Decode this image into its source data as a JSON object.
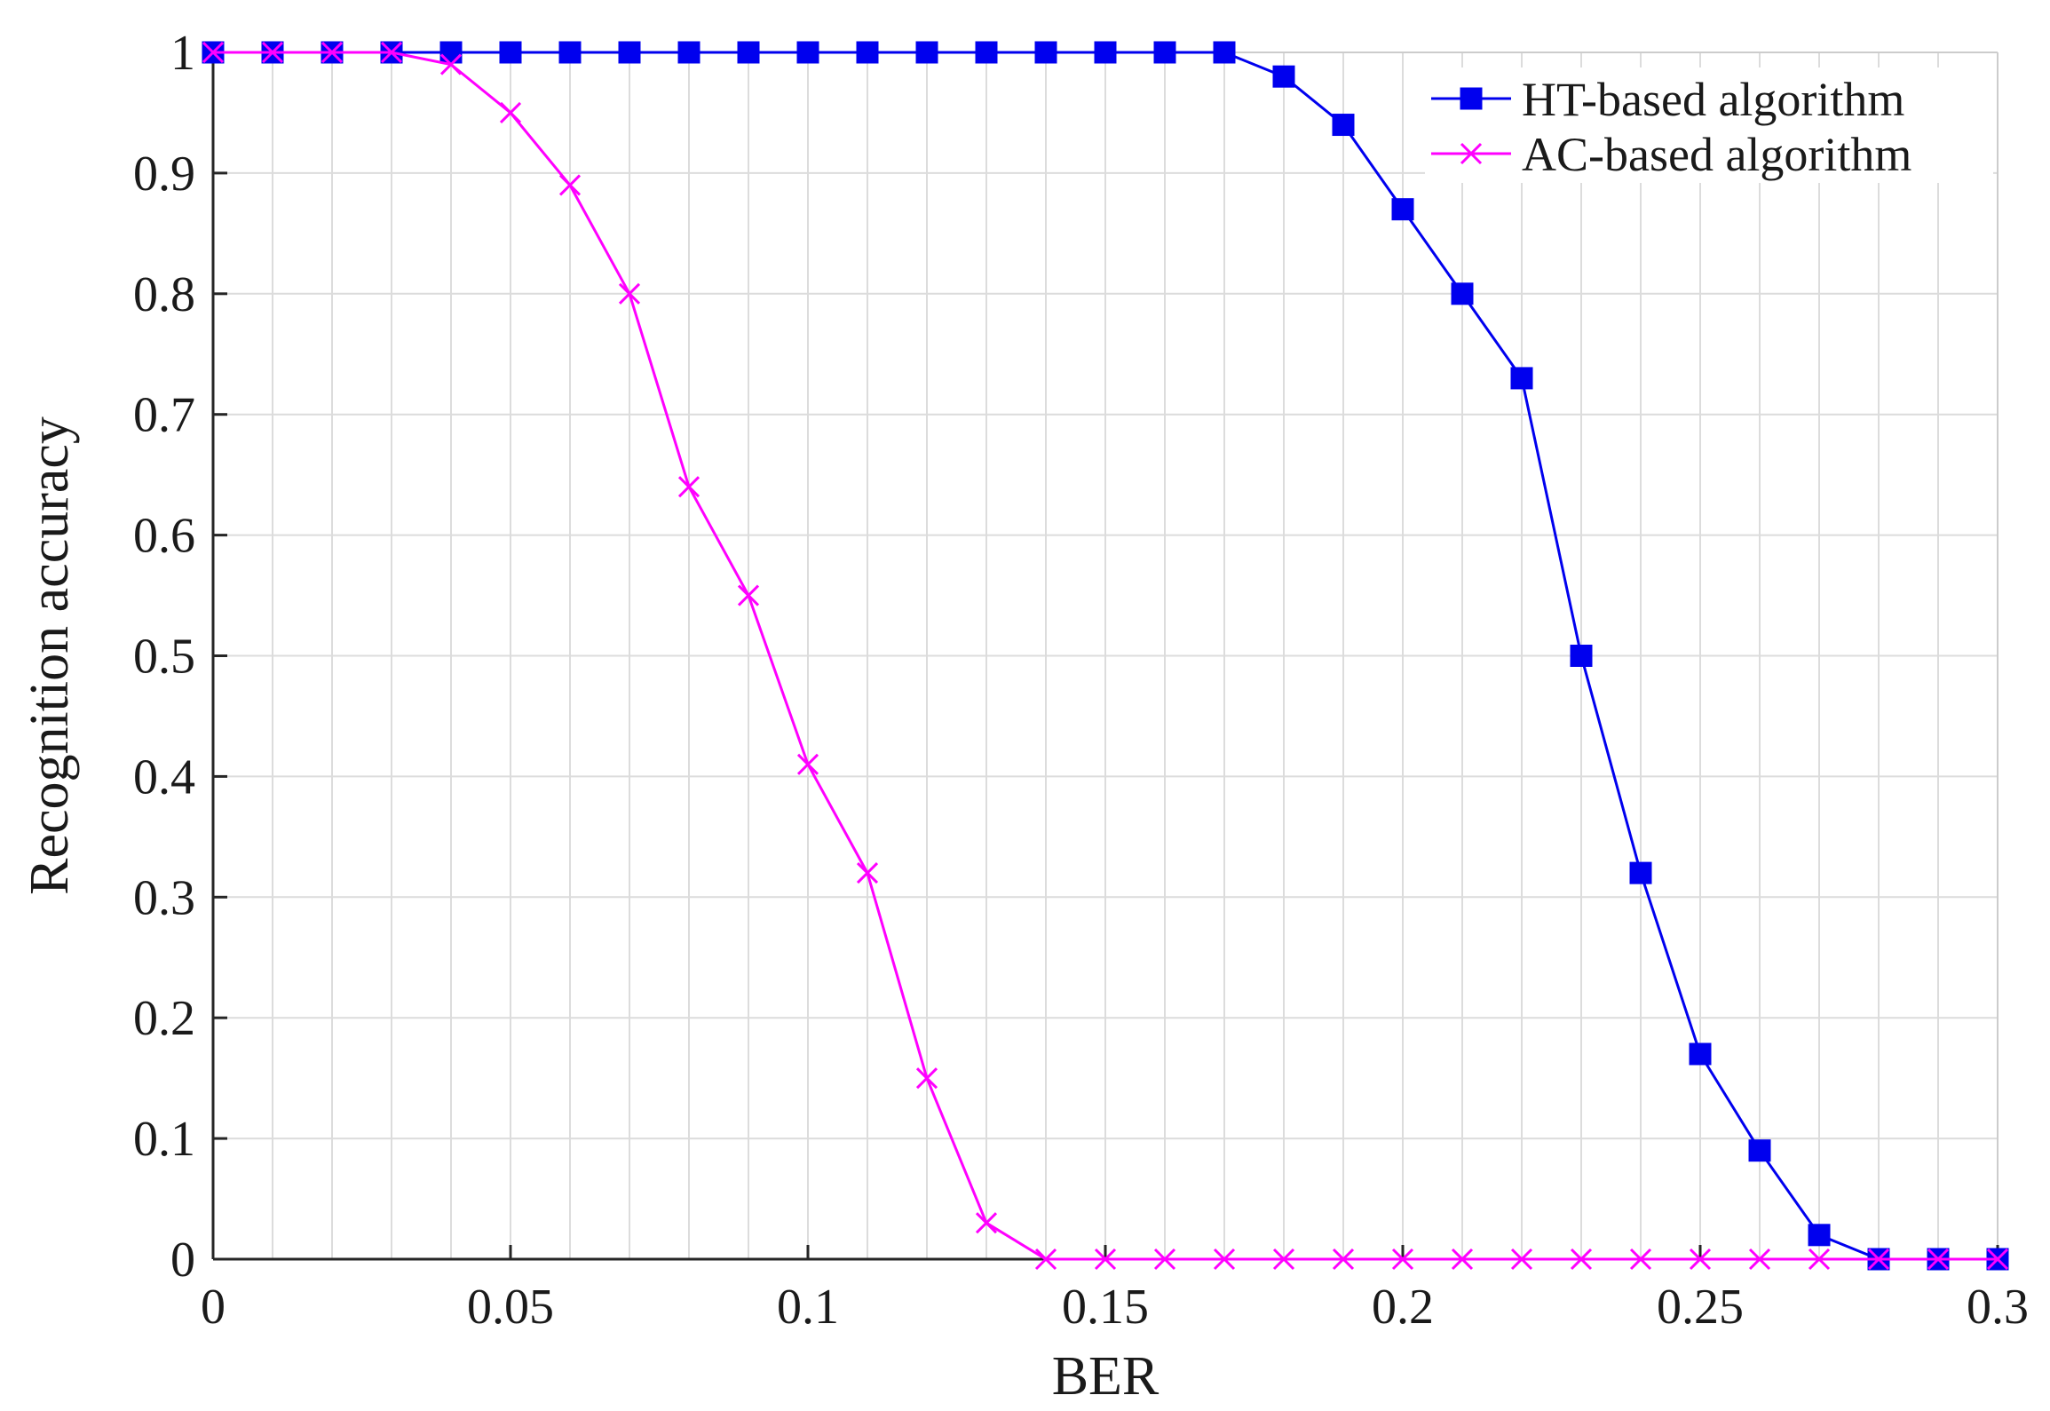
{
  "chart_data": {
    "type": "line",
    "xlabel": "BER",
    "ylabel": "Recognition accuracy",
    "xlim": [
      0,
      0.3
    ],
    "ylim": [
      0,
      1
    ],
    "grid": true,
    "legend_position": "top-right",
    "x_ticks": [
      "0",
      "0.05",
      "0.1",
      "0.15",
      "0.2",
      "0.25",
      "0.3"
    ],
    "y_ticks": [
      "0",
      "0.1",
      "0.2",
      "0.3",
      "0.4",
      "0.5",
      "0.6",
      "0.7",
      "0.8",
      "0.9",
      "1"
    ],
    "x": [
      0,
      0.01,
      0.02,
      0.03,
      0.04,
      0.05,
      0.06,
      0.07,
      0.08,
      0.09,
      0.1,
      0.11,
      0.12,
      0.13,
      0.14,
      0.15,
      0.16,
      0.17,
      0.18,
      0.19,
      0.2,
      0.21,
      0.22,
      0.23,
      0.24,
      0.25,
      0.26,
      0.27,
      0.28,
      0.29,
      0.3
    ],
    "series": [
      {
        "name": "HT-based algorithm",
        "color": "#0000ee",
        "marker": "square",
        "values": [
          1,
          1,
          1,
          1,
          1,
          1,
          1,
          1,
          1,
          1,
          1,
          1,
          1,
          1,
          1,
          1,
          1,
          1,
          0.98,
          0.94,
          0.87,
          0.8,
          0.73,
          0.5,
          0.32,
          0.17,
          0.09,
          0.02,
          0,
          0,
          0
        ]
      },
      {
        "name": "AC-based algorithm",
        "color": "#ff00ff",
        "marker": "x",
        "values": [
          1,
          1,
          1,
          1,
          0.99,
          0.95,
          0.89,
          0.8,
          0.64,
          0.55,
          0.41,
          0.32,
          0.15,
          0.03,
          0,
          0,
          0,
          0,
          0,
          0,
          0,
          0,
          0,
          0,
          0,
          0,
          0,
          0,
          0,
          0,
          0
        ]
      }
    ]
  }
}
